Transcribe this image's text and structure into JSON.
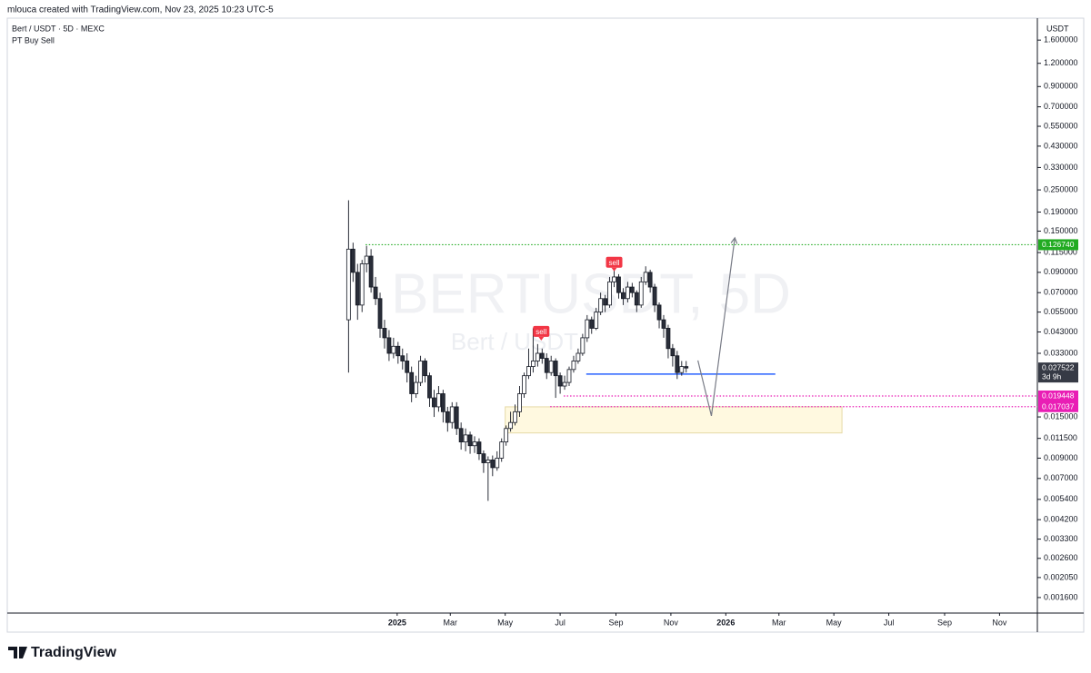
{
  "header": {
    "text": "mlouca created with TradingView.com, Nov 23, 2025 10:23 UTC-5"
  },
  "footer": {
    "brand": "TradingView"
  },
  "chart_data": {
    "type": "candlestick",
    "title": "Bert / USDT · 5D · MEXC",
    "subtitle": "PT Buy Sell",
    "watermark": "BERTUSDT, 5D",
    "watermark_sub": "Bert / USDT",
    "y_axis_unit": "USDT",
    "log_scale": true,
    "up_color": "#ffffff",
    "down_color": "#2a2e39",
    "xlim": [
      -433,
      711
    ],
    "ylim": [
      0.00132,
      2.1
    ],
    "xticks": [
      {
        "value": 0,
        "label": "2025"
      },
      {
        "value": 59,
        "label": "Mar"
      },
      {
        "value": 120,
        "label": "May"
      },
      {
        "value": 181,
        "label": "Jul"
      },
      {
        "value": 243,
        "label": "Sep"
      },
      {
        "value": 304,
        "label": "Nov"
      },
      {
        "value": 365,
        "label": "2026"
      },
      {
        "value": 424,
        "label": "Mar"
      },
      {
        "value": 485,
        "label": "May"
      },
      {
        "value": 546,
        "label": "Jul"
      },
      {
        "value": 608,
        "label": "Sep"
      },
      {
        "value": 669,
        "label": "Nov"
      }
    ],
    "yticks": [
      {
        "value": 1.6,
        "label": "1.600000"
      },
      {
        "value": 1.2,
        "label": "1.200000"
      },
      {
        "value": 0.9,
        "label": "0.900000"
      },
      {
        "value": 0.7,
        "label": "0.700000"
      },
      {
        "value": 0.55,
        "label": "0.550000"
      },
      {
        "value": 0.43,
        "label": "0.430000"
      },
      {
        "value": 0.33,
        "label": "0.330000"
      },
      {
        "value": 0.25,
        "label": "0.250000"
      },
      {
        "value": 0.19,
        "label": "0.190000"
      },
      {
        "value": 0.15,
        "label": "0.150000"
      },
      {
        "value": 0.115,
        "label": "0.115000"
      },
      {
        "value": 0.09,
        "label": "0.090000"
      },
      {
        "value": 0.07,
        "label": "0.070000"
      },
      {
        "value": 0.055,
        "label": "0.055000"
      },
      {
        "value": 0.043,
        "label": "0.043000"
      },
      {
        "value": 0.033,
        "label": "0.033000"
      },
      {
        "value": 0.015,
        "label": "0.015000"
      },
      {
        "value": 0.0115,
        "label": "0.011500"
      },
      {
        "value": 0.009,
        "label": "0.009000"
      },
      {
        "value": 0.007,
        "label": "0.007000"
      },
      {
        "value": 0.0054,
        "label": "0.005400"
      },
      {
        "value": 0.0042,
        "label": "0.004200"
      },
      {
        "value": 0.0033,
        "label": "0.003300"
      },
      {
        "value": 0.0026,
        "label": "0.002600"
      },
      {
        "value": 0.00205,
        "label": "0.002050"
      },
      {
        "value": 0.0016,
        "label": "0.001600"
      }
    ],
    "x": [
      -54,
      -49,
      -44,
      -39,
      -34,
      -29,
      -24,
      -19,
      -14,
      -9,
      -4,
      1,
      6,
      11,
      16,
      21,
      26,
      31,
      36,
      41,
      46,
      51,
      56,
      61,
      66,
      71,
      76,
      81,
      86,
      91,
      96,
      101,
      106,
      111,
      116,
      121,
      126,
      131,
      136,
      141,
      146,
      151,
      156,
      161,
      166,
      171,
      176,
      181,
      186,
      191,
      196,
      201,
      206,
      211,
      216,
      221,
      226,
      231,
      236,
      241,
      246,
      251,
      256,
      261,
      266,
      271,
      276,
      281,
      286,
      291,
      296,
      301,
      306,
      311,
      316,
      321
    ],
    "open": [
      0.05,
      0.12,
      0.09,
      0.06,
      0.1,
      0.11,
      0.075,
      0.065,
      0.045,
      0.04,
      0.033,
      0.036,
      0.032,
      0.03,
      0.026,
      0.02,
      0.023,
      0.03,
      0.025,
      0.019,
      0.017,
      0.02,
      0.016,
      0.014,
      0.017,
      0.013,
      0.011,
      0.012,
      0.0105,
      0.011,
      0.0095,
      0.0085,
      0.0088,
      0.008,
      0.009,
      0.011,
      0.013,
      0.014,
      0.016,
      0.02,
      0.025,
      0.028,
      0.03,
      0.033,
      0.031,
      0.026,
      0.03,
      0.025,
      0.022,
      0.023,
      0.027,
      0.03,
      0.033,
      0.04,
      0.05,
      0.045,
      0.055,
      0.065,
      0.06,
      0.08,
      0.085,
      0.07,
      0.065,
      0.075,
      0.07,
      0.06,
      0.08,
      0.09,
      0.075,
      0.06,
      0.05,
      0.045,
      0.035,
      0.032,
      0.026,
      0.028
    ],
    "high": [
      0.22,
      0.13,
      0.1,
      0.105,
      0.125,
      0.12,
      0.085,
      0.07,
      0.05,
      0.044,
      0.04,
      0.038,
      0.035,
      0.033,
      0.028,
      0.025,
      0.032,
      0.031,
      0.026,
      0.021,
      0.022,
      0.021,
      0.017,
      0.018,
      0.018,
      0.014,
      0.013,
      0.0125,
      0.0118,
      0.0115,
      0.0099,
      0.0092,
      0.0093,
      0.0098,
      0.0115,
      0.0135,
      0.016,
      0.0175,
      0.022,
      0.026,
      0.035,
      0.045,
      0.037,
      0.035,
      0.033,
      0.032,
      0.031,
      0.026,
      0.025,
      0.028,
      0.032,
      0.035,
      0.042,
      0.053,
      0.052,
      0.058,
      0.07,
      0.068,
      0.085,
      0.092,
      0.088,
      0.074,
      0.08,
      0.079,
      0.072,
      0.085,
      0.097,
      0.093,
      0.078,
      0.062,
      0.053,
      0.047,
      0.037,
      0.034,
      0.03,
      0.03
    ],
    "low": [
      0.026,
      0.08,
      0.05,
      0.055,
      0.09,
      0.07,
      0.06,
      0.04,
      0.035,
      0.03,
      0.031,
      0.029,
      0.027,
      0.023,
      0.018,
      0.019,
      0.022,
      0.023,
      0.017,
      0.015,
      0.016,
      0.014,
      0.0125,
      0.013,
      0.012,
      0.01,
      0.0098,
      0.0095,
      0.0096,
      0.0088,
      0.0075,
      0.0053,
      0.0072,
      0.0077,
      0.0086,
      0.0105,
      0.0125,
      0.0135,
      0.015,
      0.019,
      0.024,
      0.026,
      0.028,
      0.029,
      0.024,
      0.025,
      0.019,
      0.02,
      0.021,
      0.022,
      0.026,
      0.029,
      0.032,
      0.038,
      0.042,
      0.044,
      0.053,
      0.055,
      0.058,
      0.075,
      0.065,
      0.06,
      0.062,
      0.066,
      0.055,
      0.058,
      0.077,
      0.07,
      0.055,
      0.045,
      0.04,
      0.031,
      0.028,
      0.024,
      0.025,
      0.026
    ],
    "close": [
      0.12,
      0.09,
      0.06,
      0.1,
      0.11,
      0.075,
      0.065,
      0.045,
      0.04,
      0.033,
      0.036,
      0.032,
      0.03,
      0.026,
      0.02,
      0.023,
      0.03,
      0.025,
      0.019,
      0.017,
      0.02,
      0.016,
      0.014,
      0.017,
      0.013,
      0.011,
      0.012,
      0.0105,
      0.011,
      0.0095,
      0.0085,
      0.0088,
      0.008,
      0.009,
      0.011,
      0.013,
      0.014,
      0.016,
      0.02,
      0.025,
      0.028,
      0.03,
      0.033,
      0.031,
      0.026,
      0.03,
      0.025,
      0.022,
      0.023,
      0.027,
      0.03,
      0.033,
      0.04,
      0.05,
      0.045,
      0.055,
      0.065,
      0.06,
      0.08,
      0.085,
      0.07,
      0.065,
      0.075,
      0.07,
      0.06,
      0.08,
      0.09,
      0.075,
      0.06,
      0.05,
      0.045,
      0.035,
      0.032,
      0.026,
      0.028,
      0.0275
    ],
    "last_price": 0.027522,
    "last_price_countdown": "3d 9h",
    "levels": [
      {
        "value": 0.12674,
        "label": "0.126740",
        "color": "#22ab22",
        "start": -35
      },
      {
        "value": 0.019448,
        "color": "#e91eb5",
        "start": 185
      },
      {
        "value": 0.017037,
        "color": "#e91eb5",
        "start": 170
      }
    ],
    "support_line": {
      "value": 0.0255,
      "x0": 210,
      "x1": 420,
      "color": "#2962ff"
    },
    "zone": {
      "x0": 120,
      "x1": 494,
      "y0": 0.0123,
      "y1": 0.017
    },
    "arrow": {
      "x": [
        334,
        349,
        375
      ],
      "y": [
        0.0302,
        0.0152,
        0.138
      ]
    },
    "signals": [
      {
        "x": 160,
        "y": 0.0428,
        "text": "sell"
      },
      {
        "x": 241,
        "y": 0.1008,
        "text": "sell"
      }
    ]
  }
}
